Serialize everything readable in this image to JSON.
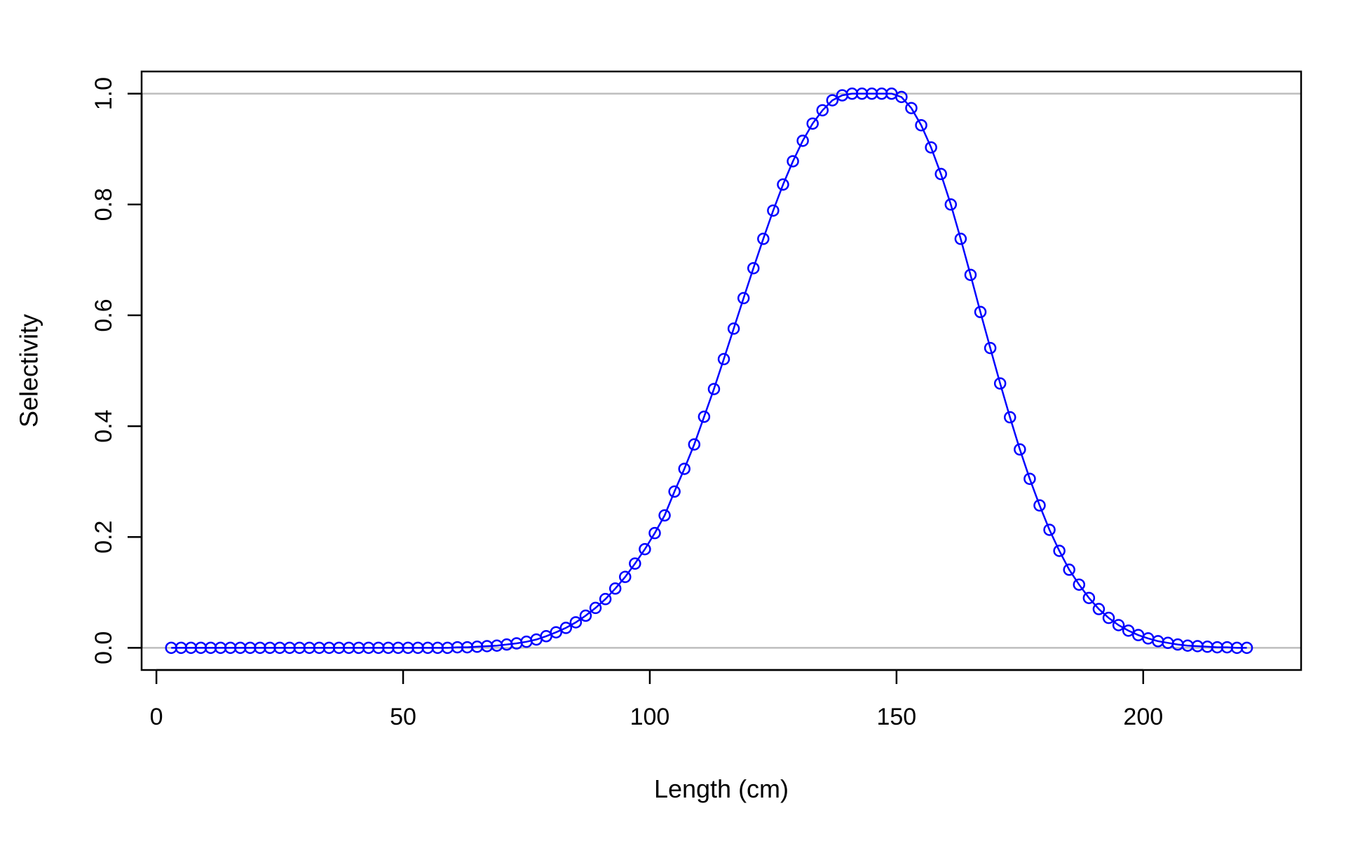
{
  "chart_data": {
    "type": "line",
    "title": "",
    "xlabel": "Length (cm)",
    "ylabel": "Selectivity",
    "xlim": [
      -3,
      232
    ],
    "ylim": [
      -0.04,
      1.04
    ],
    "x_ticks": [
      0,
      50,
      100,
      150,
      200
    ],
    "x_tick_labels": [
      "0",
      "50",
      "100",
      "150",
      "200"
    ],
    "y_ticks": [
      0.0,
      0.2,
      0.4,
      0.6,
      0.8,
      1.0
    ],
    "y_tick_labels": [
      "0.0",
      "0.2",
      "0.4",
      "0.6",
      "0.8",
      "1.0"
    ],
    "reference_lines": [
      0,
      1
    ],
    "grid": false,
    "colors": {
      "series": "#0000ff",
      "reference": "#bebebe",
      "axis": "#000000"
    },
    "markers": "open-circle",
    "series": [
      {
        "x": [
          3,
          5,
          7,
          9,
          11,
          13,
          15,
          17,
          19,
          21,
          23,
          25,
          27,
          29,
          31,
          33,
          35,
          37,
          39,
          41,
          43,
          45,
          47,
          49,
          51,
          53,
          55,
          57,
          59,
          61,
          63,
          65,
          67,
          69,
          71,
          73,
          75,
          77,
          79,
          81,
          83,
          85,
          87,
          89,
          91,
          93,
          95,
          97,
          99,
          101,
          103,
          105,
          107,
          109,
          111,
          113,
          115,
          117,
          119,
          121,
          123,
          125,
          127,
          129,
          131,
          133,
          135,
          137,
          139,
          141,
          143,
          145,
          147,
          149,
          151,
          153,
          155,
          157,
          159,
          161,
          163,
          165,
          167,
          169,
          171,
          173,
          175,
          177,
          179,
          181,
          183,
          185,
          187,
          189,
          191,
          193,
          195,
          197,
          199,
          201,
          203,
          205,
          207,
          209,
          211,
          213,
          215,
          217,
          219,
          221
        ],
        "values": [
          0,
          0,
          0,
          0,
          0,
          0,
          0,
          0,
          0,
          0,
          0,
          0,
          0,
          0,
          0,
          0,
          0,
          0,
          0,
          0,
          0,
          0,
          0,
          0,
          0,
          0,
          0,
          0,
          0,
          0.001,
          0.001,
          0.002,
          0.003,
          0.004,
          0.006,
          0.008,
          0.011,
          0.015,
          0.021,
          0.028,
          0.036,
          0.046,
          0.058,
          0.072,
          0.088,
          0.107,
          0.128,
          0.152,
          0.178,
          0.207,
          0.239,
          0.282,
          0.323,
          0.367,
          0.417,
          0.467,
          0.521,
          0.576,
          0.631,
          0.685,
          0.738,
          0.789,
          0.836,
          0.878,
          0.915,
          0.946,
          0.97,
          0.988,
          0.997,
          1,
          1,
          1,
          1,
          1,
          0.994,
          0.974,
          0.943,
          0.903,
          0.855,
          0.8,
          0.738,
          0.673,
          0.606,
          0.541,
          0.477,
          0.416,
          0.358,
          0.305,
          0.257,
          0.213,
          0.175,
          0.141,
          0.114,
          0.09,
          0.07,
          0.054,
          0.041,
          0.031,
          0.023,
          0.017,
          0.012,
          0.009,
          0.006,
          0.004,
          0.003,
          0.002,
          0.001,
          0.001,
          0,
          0
        ]
      }
    ]
  }
}
